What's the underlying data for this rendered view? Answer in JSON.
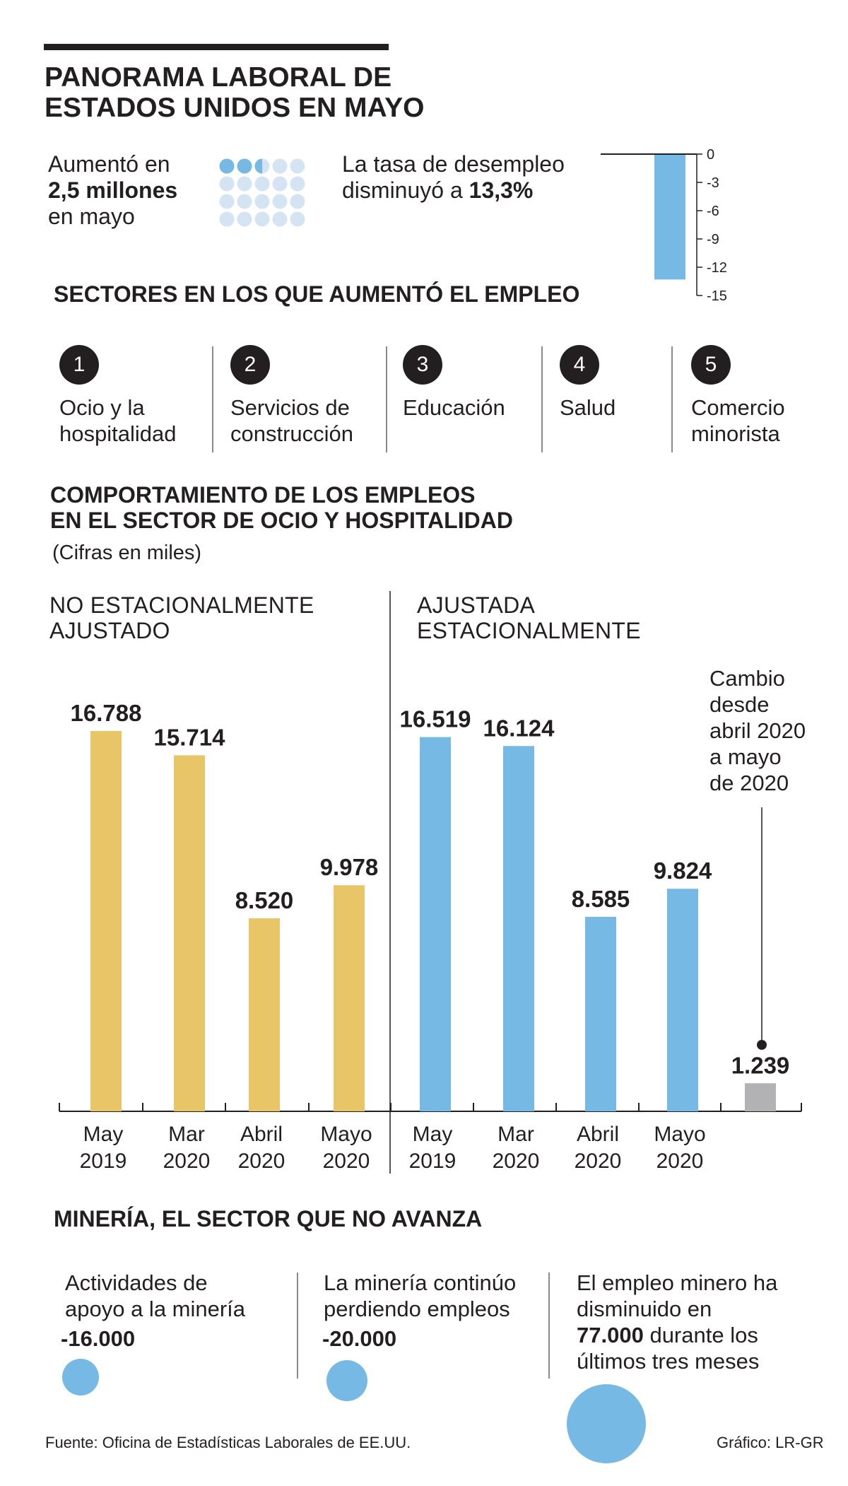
{
  "title": {
    "line1": "PANORAMA LABORAL DE",
    "line2": "ESTADOS UNIDOS EN MAYO"
  },
  "summary": {
    "jobs_pre": "Aumentó en",
    "jobs_value": "2,5 millones",
    "jobs_post": "en mayo",
    "rate_line1": "La tasa de desempleo",
    "rate_line2_pre": "disminuyó a",
    "rate_value": "13,3%"
  },
  "dots": {
    "full": 2,
    "half": 1,
    "total": 20
  },
  "rate_chart": {
    "value": -13.3,
    "min": -15,
    "max": 0,
    "ticks": [
      "0",
      "-3",
      "-6",
      "-9",
      "-12",
      "-15"
    ]
  },
  "sectors": {
    "heading": "SECTORES EN LOS QUE AUMENTÓ EL EMPLEO",
    "items": [
      {
        "num": "1",
        "line1": "Ocio y la",
        "line2": "hospitalidad"
      },
      {
        "num": "2",
        "line1": "Servicios de",
        "line2": "construcción"
      },
      {
        "num": "3",
        "line1": "Educación",
        "line2": ""
      },
      {
        "num": "4",
        "line1": "Salud",
        "line2": ""
      },
      {
        "num": "5",
        "line1": "Comercio",
        "line2": "minorista"
      }
    ]
  },
  "comportamiento": {
    "line1": "COMPORTAMIENTO DE LOS EMPLEOS",
    "line2": "EN EL SECTOR DE OCIO Y HOSPITALIDAD",
    "units": "(Cifras en miles)",
    "panel1_l1": "NO ESTACIONALMENTE",
    "panel1_l2": "AJUSTADO",
    "panel2_l1": "AJUSTADA",
    "panel2_l2": "ESTACIONALMENTE",
    "note": [
      "Cambio",
      "desde",
      "abril 2020",
      "a mayo",
      "de 2020"
    ]
  },
  "chart_data": [
    {
      "type": "bar",
      "title": "NO ESTACIONALMENTE AJUSTADO",
      "categories": [
        "May 2019",
        "Mar 2020",
        "Abril 2020",
        "Mayo 2020"
      ],
      "values": [
        16788,
        15714,
        8520,
        9978
      ],
      "labels": [
        "16.788",
        "15.714",
        "8.520",
        "9.978"
      ],
      "ylim": [
        0,
        17500
      ],
      "color": "#e8c566"
    },
    {
      "type": "bar",
      "title": "AJUSTADA ESTACIONALMENTE",
      "categories": [
        "May 2019",
        "Mar 2020",
        "Abril 2020",
        "Mayo 2020"
      ],
      "values": [
        16519,
        16124,
        8585,
        9824
      ],
      "labels": [
        "16.519",
        "16.124",
        "8.585",
        "9.824"
      ],
      "ylim": [
        0,
        17500
      ],
      "color": "#75b9e4"
    },
    {
      "type": "bar",
      "title": "Cambio desde abril 2020 a mayo de 2020",
      "categories": [
        ""
      ],
      "values": [
        1239
      ],
      "labels": [
        "1.239"
      ],
      "ylim": [
        0,
        17500
      ],
      "color": "#b2b2b4"
    },
    {
      "type": "bar",
      "title": "La tasa de desempleo disminuyó a 13,3%",
      "categories": [
        ""
      ],
      "values": [
        -13.3
      ],
      "ylim": [
        -15,
        0
      ],
      "yticks": [
        0,
        -3,
        -6,
        -9,
        -12,
        -15
      ],
      "color": "#75b9e4"
    }
  ],
  "category_labels": [
    [
      "May",
      "2019"
    ],
    [
      "Mar",
      "2020"
    ],
    [
      "Abril",
      "2020"
    ],
    [
      "Mayo",
      "2020"
    ],
    [
      "May",
      "2019"
    ],
    [
      "Mar",
      "2020"
    ],
    [
      "Abril",
      "2020"
    ],
    [
      "Mayo",
      "2020"
    ]
  ],
  "mineria": {
    "heading": "MINERÍA, EL SECTOR QUE NO AVANZA",
    "c1_l1": "Actividades de",
    "c1_l2": "apoyo a la minería",
    "c1_val": "-16.000",
    "c2_l1": "La minería continúo",
    "c2_l2": "perdiendo empleos",
    "c2_val": "-20.000",
    "c3_l1": "El empleo minero ha",
    "c3_l2": "disminuido en",
    "c3_val": "77.000",
    "c3_post": "durante los",
    "c3_l4": "últimos tres meses"
  },
  "footer": {
    "source": "Fuente: Oficina de Estadísticas Laborales de EE.UU.",
    "credit": "Gráfico: LR-GR"
  }
}
